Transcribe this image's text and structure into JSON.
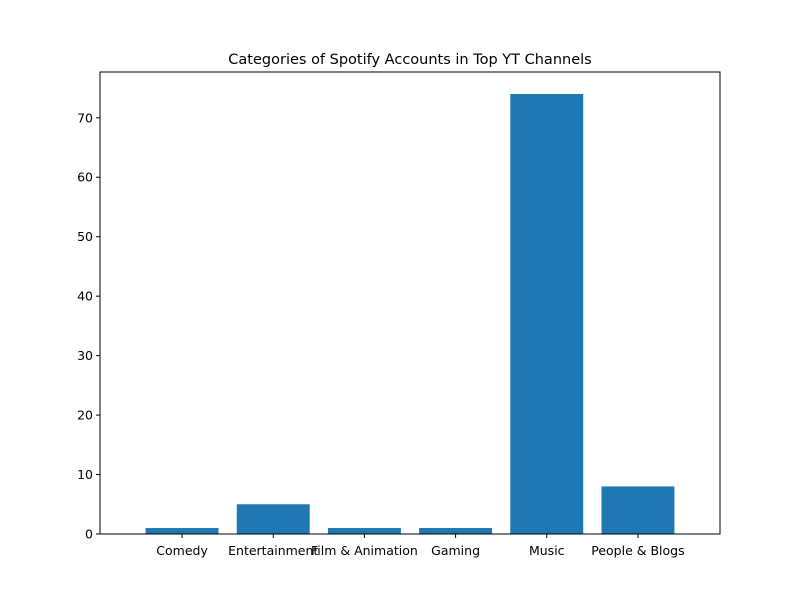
{
  "chart_data": {
    "type": "bar",
    "title": "Categories of Spotify Accounts in Top YT Channels",
    "xlabel": "",
    "ylabel": "",
    "categories": [
      "Comedy",
      "Entertainment",
      "Film & Animation",
      "Gaming",
      "Music",
      "People & Blogs"
    ],
    "values": [
      1,
      5,
      1,
      1,
      74,
      8
    ],
    "ylim": [
      0,
      77.7
    ],
    "yticks": [
      0,
      10,
      20,
      30,
      40,
      50,
      60,
      70
    ],
    "grid": false,
    "legend": "none",
    "bar_color": "#1f77b4"
  }
}
